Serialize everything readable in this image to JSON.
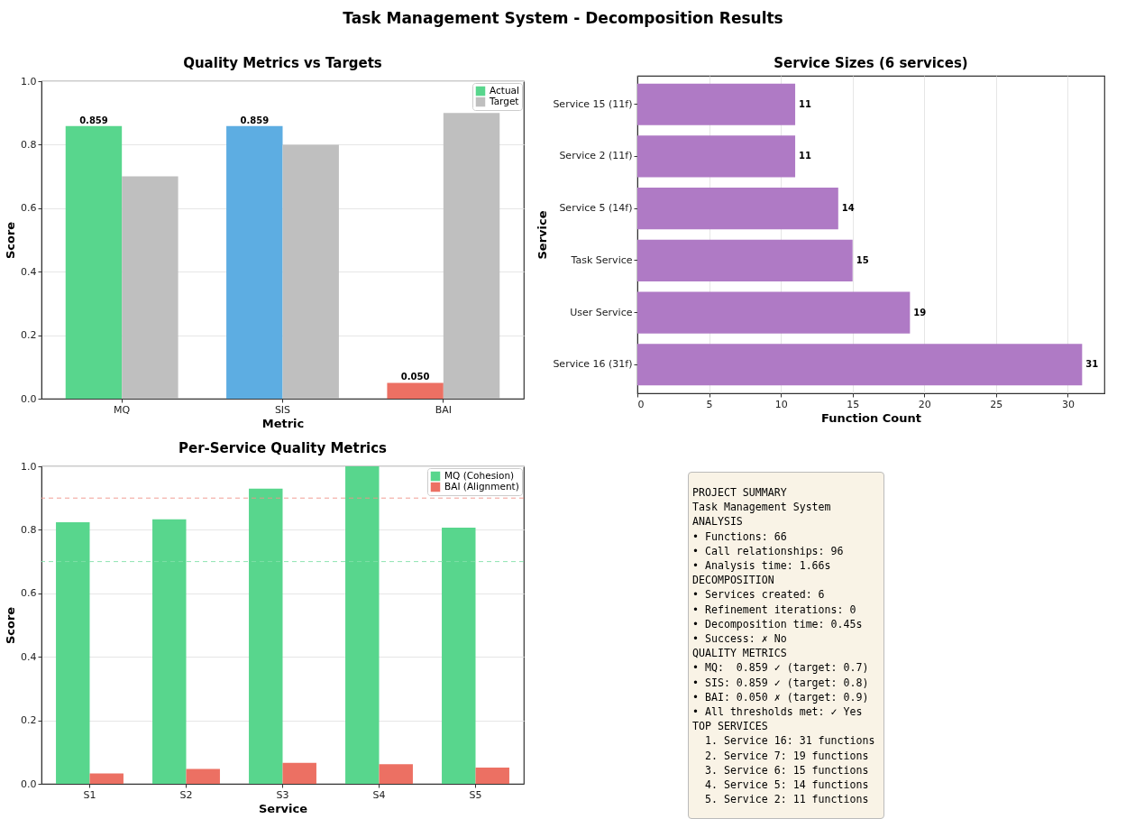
{
  "chart_data": [
    {
      "type": "other",
      "title": "Task Management System - Decomposition Results"
    },
    {
      "type": "bar",
      "title": "Quality Metrics vs Targets",
      "xlabel": "Metric",
      "ylabel": "Score",
      "categories": [
        "MQ",
        "SIS",
        "BAI"
      ],
      "series": [
        {
          "name": "Actual",
          "color": "#58d68d",
          "colors": [
            "#58d68d",
            "#5dade2",
            "#ec7063"
          ],
          "values": [
            0.859,
            0.859,
            0.05
          ],
          "value_labels": [
            "0.859",
            "0.859",
            "0.050"
          ]
        },
        {
          "name": "Target",
          "color": "#bfbfbf",
          "values": [
            0.7,
            0.8,
            0.9
          ]
        }
      ],
      "ylim": [
        0,
        1
      ],
      "yticks": [
        {
          "value": 0,
          "label": "0.0"
        },
        {
          "value": 0.2,
          "label": "0.2"
        },
        {
          "value": 0.4,
          "label": "0.4"
        },
        {
          "value": 0.6,
          "label": "0.6"
        },
        {
          "value": 0.8,
          "label": "0.8"
        },
        {
          "value": 1,
          "label": "1.0"
        }
      ],
      "grid": "y",
      "legend": "top right"
    },
    {
      "type": "bar",
      "orientation": "horizontal",
      "title": "Service Sizes (6 services)",
      "xlabel": "Function Count",
      "ylabel": "Service",
      "categories": [
        "Service 15 (11f)",
        "Service 2 (11f)",
        "Service 5 (14f)",
        "Task Service",
        "User Service",
        "Service 16 (31f)"
      ],
      "values": [
        11,
        11,
        14,
        15,
        19,
        31
      ],
      "color": "#af7ac5",
      "data_labels": true,
      "xlim": [
        0,
        32.55
      ],
      "xticks": [
        0,
        5,
        10,
        15,
        20,
        25,
        30
      ],
      "grid": "x"
    },
    {
      "type": "bar",
      "title": "Per-Service Quality Metrics",
      "xlabel": "Service",
      "ylabel": "Score",
      "categories": [
        "S1",
        "S2",
        "S3",
        "S4",
        "S5"
      ],
      "series": [
        {
          "name": "MQ (Cohesion)",
          "color": "#58d68d",
          "values": [
            0.824,
            0.833,
            0.93,
            1.0,
            0.807
          ]
        },
        {
          "name": "BAI (Alignment)",
          "color": "#ec7063",
          "values": [
            0.033,
            0.047,
            0.066,
            0.062,
            0.051
          ]
        }
      ],
      "ref_lines": [
        {
          "axis": "y",
          "value": 0.9,
          "color": "#f1948a",
          "line_style": "dashed"
        },
        {
          "axis": "y",
          "value": 0.7,
          "color": "#82e0aa",
          "line_style": "dashed"
        }
      ],
      "ylim": [
        0,
        1
      ],
      "yticks": [
        {
          "value": 0,
          "label": "0.0"
        },
        {
          "value": 0.2,
          "label": "0.2"
        },
        {
          "value": 0.4,
          "label": "0.4"
        },
        {
          "value": 0.6,
          "label": "0.6"
        },
        {
          "value": 0.8,
          "label": "0.8"
        },
        {
          "value": 1,
          "label": "1.0"
        }
      ],
      "grid": "y",
      "legend": "top right"
    },
    {
      "type": "other",
      "annotations": [
        "PROJECT SUMMARY",
        "Task Management System",
        "ANALYSIS",
        "• Functions: 66",
        "• Call relationships: 96",
        "• Analysis time: 1.66s",
        "DECOMPOSITION",
        "• Services created: 6",
        "• Refinement iterations: 0",
        "• Decomposition time: 0.45s",
        "• Success: ✗ No",
        "QUALITY METRICS",
        "• MQ:  0.859 ✓ (target: 0.7)",
        "• SIS: 0.859 ✓ (target: 0.8)",
        "• BAI: 0.050 ✗ (target: 0.9)",
        "• All thresholds met: ✓ Yes",
        "TOP SERVICES",
        "  1. Service 16: 31 functions",
        "  2. Service 7: 19 functions",
        "  3. Service 6: 15 functions",
        "  4. Service 5: 14 functions",
        "  5. Service 2: 11 functions"
      ]
    }
  ]
}
